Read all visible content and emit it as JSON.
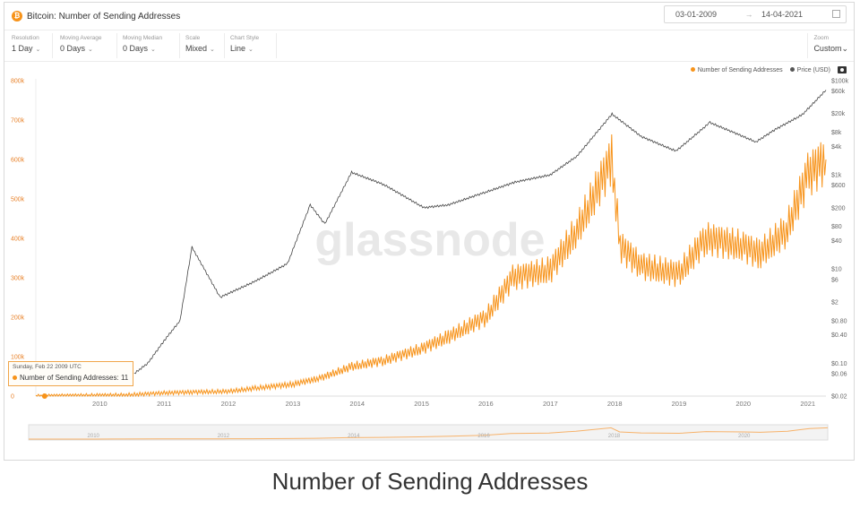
{
  "header": {
    "title": "Bitcoin: Number of Sending Addresses",
    "date_from": "03-01-2009",
    "date_to": "14-04-2021",
    "date_arrow": "→"
  },
  "controls": [
    {
      "label": "Resolution",
      "value": "1 Day"
    },
    {
      "label": "Moving Average",
      "value": "0 Days"
    },
    {
      "label": "Moving Median",
      "value": "0 Days"
    },
    {
      "label": "Scale",
      "value": "Mixed"
    },
    {
      "label": "Chart Style",
      "value": "Line"
    }
  ],
  "zoom": {
    "label": "Zoom",
    "value": "Custom"
  },
  "watermark": "glassnode",
  "tooltip": {
    "date": "Sunday, Feb 22 2009 UTC",
    "text": "Number of Sending Addresses: 11"
  },
  "caption": "Number of Sending Addresses",
  "chart_data": {
    "type": "line",
    "series": [
      {
        "name": "Number of Sending Addresses",
        "color": "#f7931a",
        "axis": "left",
        "x": [
          "2009-01-03",
          "2009-06-01",
          "2010-01-01",
          "2010-06-01",
          "2011-01-01",
          "2011-06-01",
          "2012-01-01",
          "2012-06-01",
          "2013-01-01",
          "2013-06-01",
          "2013-12-01",
          "2014-06-01",
          "2015-01-01",
          "2015-06-01",
          "2016-01-01",
          "2016-06-01",
          "2017-01-01",
          "2017-06-01",
          "2017-12-15",
          "2018-02-01",
          "2018-06-01",
          "2019-01-01",
          "2019-06-01",
          "2020-01-01",
          "2020-04-01",
          "2020-09-01",
          "2021-01-01",
          "2021-04-14"
        ],
        "values": [
          0,
          1000,
          2000,
          3000,
          8000,
          10000,
          12000,
          20000,
          30000,
          45000,
          75000,
          90000,
          120000,
          150000,
          200000,
          300000,
          320000,
          420000,
          600000,
          380000,
          330000,
          310000,
          400000,
          380000,
          360000,
          420000,
          560000,
          600000
        ]
      },
      {
        "name": "Price (USD)",
        "color": "#444444",
        "axis": "right",
        "x": [
          "2010-07-15",
          "2010-10-01",
          "2011-01-01",
          "2011-04-01",
          "2011-06-08",
          "2011-11-15",
          "2012-06-01",
          "2012-12-01",
          "2013-04-09",
          "2013-07-01",
          "2013-11-30",
          "2014-06-01",
          "2015-01-15",
          "2015-06-01",
          "2016-01-01",
          "2016-06-15",
          "2017-01-01",
          "2017-06-01",
          "2017-12-17",
          "2018-06-01",
          "2018-12-15",
          "2019-06-26",
          "2020-03-13",
          "2020-07-01",
          "2020-12-01",
          "2021-04-14"
        ],
        "values": [
          0.06,
          0.1,
          0.3,
          0.8,
          29,
          2.5,
          5.5,
          13,
          230,
          90,
          1130,
          620,
          200,
          230,
          430,
          700,
          1000,
          2500,
          19500,
          6500,
          3200,
          12900,
          5000,
          9200,
          19000,
          63000
        ]
      }
    ],
    "x_ticks": [
      "2010",
      "2011",
      "2012",
      "2013",
      "2014",
      "2015",
      "2016",
      "2017",
      "2018",
      "2019",
      "2020",
      "2021"
    ],
    "y_left_ticks": [
      "0",
      "100k",
      "200k",
      "300k",
      "400k",
      "500k",
      "600k",
      "700k",
      "800k"
    ],
    "y_right_ticks": [
      "$0.02",
      "$0.06",
      "$0.10",
      "$0.40",
      "$0.80",
      "$2",
      "$6",
      "$10",
      "$40",
      "$80",
      "$200",
      "$600",
      "$1k",
      "$4k",
      "$8k",
      "$20k",
      "$60k",
      "$100k"
    ],
    "y_left_range": [
      0,
      800000
    ],
    "y_right_scale": "log",
    "navigator_ticks": [
      "2010",
      "2012",
      "2014",
      "2016",
      "2018",
      "2020"
    ],
    "grid": false,
    "legend_position": "top-right"
  }
}
